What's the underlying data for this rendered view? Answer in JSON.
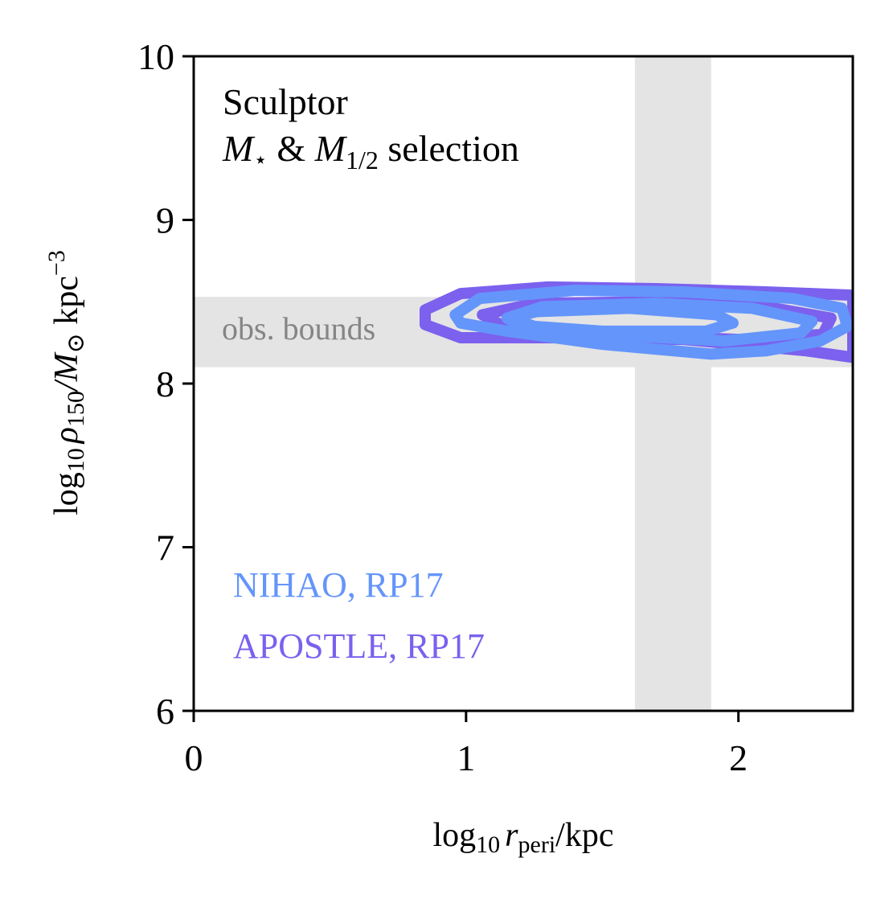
{
  "chart_data": {
    "type": "contour",
    "annotation_title": "Sculptor",
    "annotation_selection": {
      "prefix": "M",
      "star": "⋆",
      "amp": " & ",
      "m2": "M",
      "m2_sub": "1/2",
      "suffix": " selection"
    },
    "xlabel": {
      "prefix": "log",
      "sub1": "10",
      "var": "r",
      "var_sub": "peri",
      "unit": "/kpc"
    },
    "ylabel": {
      "prefix": "log",
      "sub1": "10",
      "var": "ρ",
      "var_sub": "150",
      "mid": "/M",
      "sun": "⊙",
      "unit": " kpc",
      "exp": "−3"
    },
    "xlim": [
      0,
      2.42
    ],
    "ylim": [
      6,
      10
    ],
    "xticks": [
      0,
      1,
      2
    ],
    "xtick_labels": [
      "0",
      "1",
      "2"
    ],
    "yticks": [
      6,
      7,
      8,
      9,
      10
    ],
    "ytick_labels": [
      "6",
      "7",
      "8",
      "9",
      "10"
    ],
    "obs_bounds": {
      "label": "obs. bounds",
      "x_range": [
        1.62,
        1.9
      ],
      "y_range": [
        8.1,
        8.53
      ],
      "color": "#e4e4e4"
    },
    "series": [
      {
        "name": "APOSTLE, RP17",
        "color": "#7b61ee",
        "contours": [
          [
            [
              0.85,
              8.45
            ],
            [
              0.98,
              8.55
            ],
            [
              1.3,
              8.59
            ],
            [
              1.7,
              8.58
            ],
            [
              2.1,
              8.56
            ],
            [
              2.42,
              8.54
            ],
            [
              2.42,
              8.16
            ],
            [
              2.25,
              8.2
            ],
            [
              1.8,
              8.27
            ],
            [
              1.3,
              8.28
            ],
            [
              0.98,
              8.28
            ],
            [
              0.85,
              8.36
            ]
          ],
          [
            [
              1.06,
              8.42
            ],
            [
              1.25,
              8.49
            ],
            [
              1.7,
              8.5
            ],
            [
              2.1,
              8.47
            ],
            [
              2.34,
              8.4
            ],
            [
              2.31,
              8.3
            ],
            [
              2.0,
              8.27
            ],
            [
              1.5,
              8.3
            ],
            [
              1.15,
              8.34
            ]
          ]
        ]
      },
      {
        "name": "NIHAO, RP17",
        "color": "#6495fb",
        "contours": [
          [
            [
              0.96,
              8.42
            ],
            [
              1.05,
              8.52
            ],
            [
              1.4,
              8.57
            ],
            [
              1.8,
              8.56
            ],
            [
              2.2,
              8.52
            ],
            [
              2.38,
              8.46
            ],
            [
              2.4,
              8.35
            ],
            [
              2.3,
              8.26
            ],
            [
              2.1,
              8.2
            ],
            [
              1.9,
              8.18
            ],
            [
              1.5,
              8.24
            ],
            [
              1.15,
              8.32
            ],
            [
              0.98,
              8.37
            ]
          ],
          [
            [
              1.15,
              8.4
            ],
            [
              1.28,
              8.47
            ],
            [
              1.7,
              8.49
            ],
            [
              2.05,
              8.46
            ],
            [
              2.27,
              8.38
            ],
            [
              2.23,
              8.31
            ],
            [
              1.95,
              8.26
            ],
            [
              1.5,
              8.3
            ],
            [
              1.2,
              8.35
            ]
          ],
          [
            [
              1.16,
              8.4
            ],
            [
              1.26,
              8.44
            ],
            [
              1.6,
              8.46
            ],
            [
              1.92,
              8.42
            ],
            [
              1.98,
              8.37
            ],
            [
              1.88,
              8.32
            ],
            [
              1.5,
              8.32
            ],
            [
              1.25,
              8.35
            ]
          ]
        ]
      }
    ]
  }
}
